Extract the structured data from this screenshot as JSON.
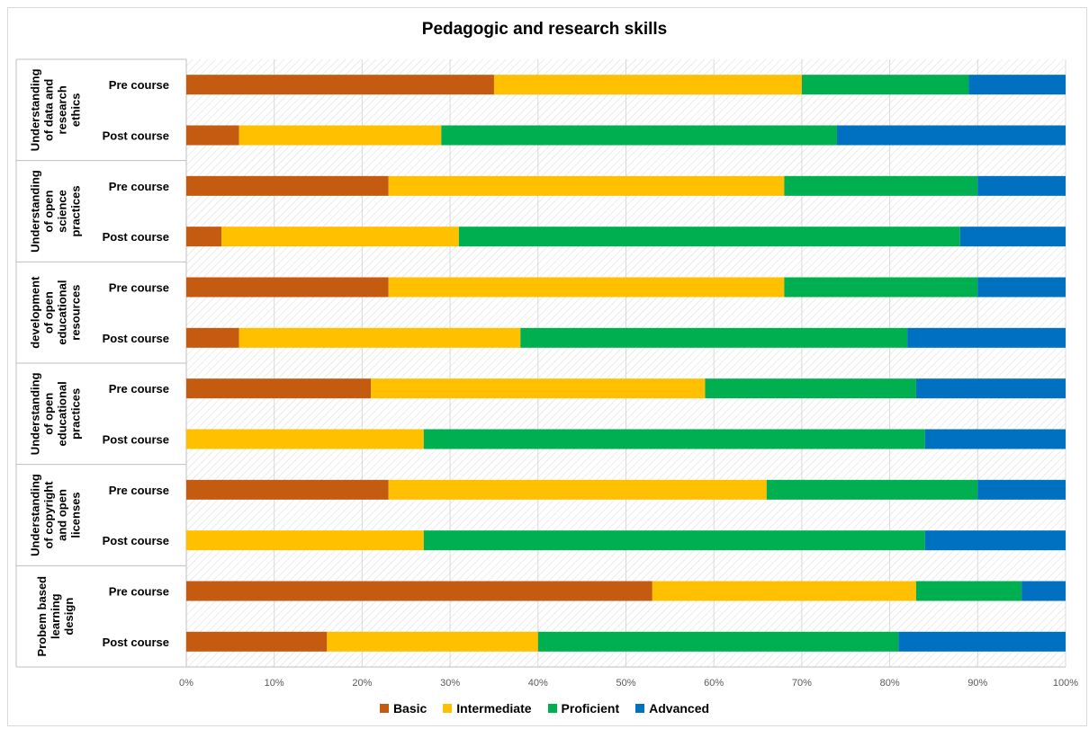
{
  "chart_data": {
    "type": "bar",
    "orientation": "horizontal",
    "stacked": "percent",
    "title": "Pedagogic and research skills",
    "xlim": [
      0,
      100
    ],
    "x_ticks": [
      "0%",
      "10%",
      "20%",
      "30%",
      "40%",
      "50%",
      "60%",
      "70%",
      "80%",
      "90%",
      "100%"
    ],
    "legend_position": "bottom",
    "series_names": [
      "Basic",
      "Intermediate",
      "Proficient",
      "Advanced"
    ],
    "colors": [
      "#c55a11",
      "#ffc000",
      "#00b050",
      "#0070c0"
    ],
    "groups": [
      {
        "label": "Understanding of data and research ethics",
        "rows": [
          {
            "label": "Pre course",
            "values": [
              35,
              35,
              19,
              11
            ]
          },
          {
            "label": "Post course",
            "values": [
              6,
              23,
              45,
              26
            ]
          }
        ]
      },
      {
        "label": "Understanding of open science practices",
        "rows": [
          {
            "label": "Pre course",
            "values": [
              23,
              45,
              22,
              10
            ]
          },
          {
            "label": "Post course",
            "values": [
              4,
              27,
              57,
              12
            ]
          }
        ]
      },
      {
        "label": "development of open educational resources",
        "rows": [
          {
            "label": "Pre course",
            "values": [
              23,
              45,
              22,
              10
            ]
          },
          {
            "label": "Post course",
            "values": [
              6,
              32,
              44,
              18
            ]
          }
        ]
      },
      {
        "label": "Understanding of open educational practices",
        "rows": [
          {
            "label": "Pre course",
            "values": [
              21,
              38,
              24,
              17
            ]
          },
          {
            "label": "Post course",
            "values": [
              0,
              27,
              57,
              16
            ]
          }
        ]
      },
      {
        "label": "Understanding of copyright and open licenses",
        "rows": [
          {
            "label": "Pre course",
            "values": [
              23,
              43,
              24,
              10
            ]
          },
          {
            "label": "Post course",
            "values": [
              0,
              27,
              57,
              16
            ]
          }
        ]
      },
      {
        "label": "Probem based learning design",
        "rows": [
          {
            "label": "Pre course",
            "values": [
              53,
              30,
              12,
              5
            ]
          },
          {
            "label": "Post course",
            "values": [
              16,
              24,
              41,
              19
            ]
          }
        ]
      }
    ]
  }
}
